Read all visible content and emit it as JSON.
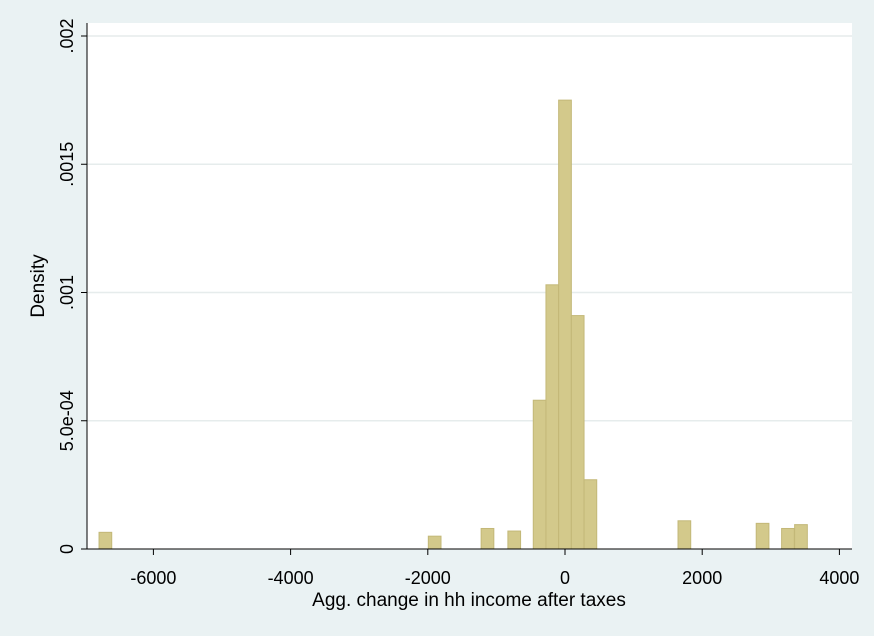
{
  "chart_data": {
    "type": "bar",
    "title": "",
    "xlabel": "Agg. change in hh income after taxes",
    "ylabel": "Density",
    "xlim": [
      -7000,
      4050
    ],
    "ylim": [
      0,
      0.002
    ],
    "x_ticks": [
      -6000,
      -4000,
      -2000,
      0,
      2000,
      4000
    ],
    "x_tick_labels": [
      "-6000",
      "-4000",
      "-2000",
      "0",
      "2000",
      "4000"
    ],
    "y_ticks": [
      0,
      0.0005,
      0.001,
      0.0015,
      0.002
    ],
    "y_tick_labels": [
      "0",
      "5.0e-04",
      ".001",
      ".0015",
      ".002"
    ],
    "grid": true,
    "legend": "none",
    "colors": {
      "bar_fill": "#d3c98b",
      "bar_stroke": "#c3b878",
      "plot_background": "#ffffff",
      "outer_background": "#eaf2f3",
      "grid": "#e6ecec",
      "axis": "#000000"
    },
    "bin_width": 185,
    "bins": [
      {
        "x": -6700,
        "y": 6.5e-05
      },
      {
        "x": -1900,
        "y": 5e-05
      },
      {
        "x": -1130,
        "y": 8e-05
      },
      {
        "x": -740,
        "y": 7e-05
      },
      {
        "x": -370,
        "y": 0.00058
      },
      {
        "x": -185,
        "y": 0.00103
      },
      {
        "x": 0,
        "y": 0.00175
      },
      {
        "x": 185,
        "y": 0.00091
      },
      {
        "x": 370,
        "y": 0.00027
      },
      {
        "x": 1740,
        "y": 0.00011
      },
      {
        "x": 2880,
        "y": 0.0001
      },
      {
        "x": 3250,
        "y": 8e-05
      },
      {
        "x": 3440,
        "y": 9.5e-05
      }
    ]
  }
}
